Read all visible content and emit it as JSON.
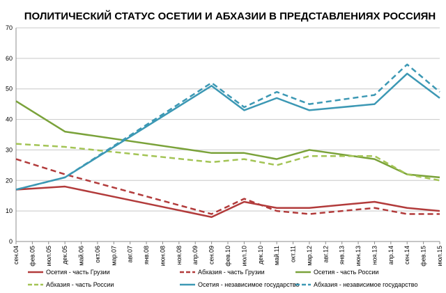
{
  "chart_data": {
    "type": "line",
    "title": "ПОЛИТИЧЕСКИЙ СТАТУС ОСЕТИИ И АБХАЗИИ В ПРЕДСТАВЛЕНИЯХ РОССИЯН",
    "xlabel": "",
    "ylabel": "",
    "ylim": [
      0,
      70
    ],
    "yticks": [
      0,
      10,
      20,
      30,
      40,
      50,
      60,
      70
    ],
    "grid": true,
    "legend_position": "bottom",
    "x_tick_labels": [
      "сен.04",
      "фев.05",
      "июл.05",
      "дек.05",
      "май.06",
      "окт.06",
      "мар.07",
      "авг.07",
      "янв.08",
      "июн.08",
      "ноя.08",
      "апр.09",
      "сен.09",
      "фев.10",
      "июл.10",
      "дек.10",
      "май.11",
      "окт.11",
      "мар.12",
      "авг.12",
      "янв.13",
      "июн.13",
      "ноя.13",
      "апр.14",
      "сен.14",
      "фев.15",
      "июл.15"
    ],
    "series": [
      {
        "name": "Осетия - часть Грузии",
        "color": "#b23b3b",
        "dash": "solid",
        "x": [
          "сен.04",
          "дек.05",
          "сен.09",
          "июл.10",
          "май.11",
          "мар.12",
          "ноя.13",
          "сен.14",
          "июл.15"
        ],
        "values": [
          17,
          18,
          8,
          13,
          11,
          11,
          13,
          11,
          10
        ]
      },
      {
        "name": "Абхазия - часть Грузии",
        "color": "#b23b3b",
        "dash": "dashed",
        "x": [
          "сен.04",
          "дек.05",
          "сен.09",
          "июл.10",
          "май.11",
          "мар.12",
          "ноя.13",
          "сен.14",
          "июл.15"
        ],
        "values": [
          27,
          22,
          9,
          14,
          10,
          9,
          11,
          9,
          9
        ]
      },
      {
        "name": "Осетия - часть России",
        "color": "#7aa23a",
        "dash": "solid",
        "x": [
          "сен.04",
          "дек.05",
          "сен.09",
          "июл.10",
          "май.11",
          "мар.12",
          "ноя.13",
          "сен.14",
          "июл.15"
        ],
        "values": [
          46,
          36,
          29,
          29,
          27,
          30,
          27,
          22,
          21
        ]
      },
      {
        "name": "Абхазия - часть России",
        "color": "#a3c455",
        "dash": "dashed",
        "x": [
          "сен.04",
          "дек.05",
          "сен.09",
          "июл.10",
          "май.11",
          "мар.12",
          "ноя.13",
          "сен.14",
          "июл.15"
        ],
        "values": [
          32,
          31,
          26,
          27,
          25,
          28,
          28,
          22,
          20
        ]
      },
      {
        "name": "Осетия - независимое государство",
        "color": "#3c98b4",
        "dash": "solid",
        "x": [
          "сен.04",
          "дек.05",
          "сен.09",
          "июл.10",
          "май.11",
          "мар.12",
          "ноя.13",
          "сен.14",
          "июл.15"
        ],
        "values": [
          17,
          21,
          51,
          43,
          47,
          43,
          45,
          55,
          47
        ]
      },
      {
        "name": "Абхазия - независимое государство",
        "color": "#3c98b4",
        "dash": "dashed",
        "x": [
          "сен.04",
          "дек.05",
          "сен.09",
          "июл.10",
          "май.11",
          "мар.12",
          "ноя.13",
          "сен.14",
          "июл.15"
        ],
        "values": [
          17,
          21,
          52,
          44,
          49,
          45,
          48,
          58,
          49
        ]
      }
    ]
  }
}
